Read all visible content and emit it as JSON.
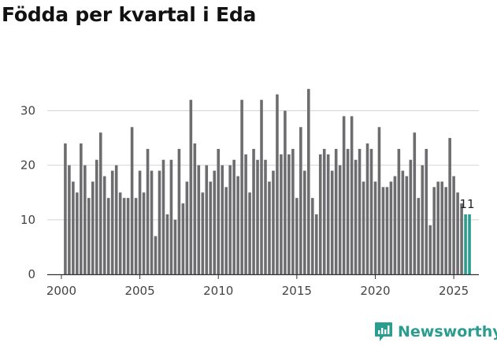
{
  "title": "Födda per kvartal i Eda",
  "brand": {
    "name": "Newsworthy"
  },
  "colors": {
    "bar": "#6d6d70",
    "highlight": "#2a9d8f",
    "axis": "#333333",
    "grid": "#d4d4d4"
  },
  "chart_data": {
    "type": "bar",
    "title": "Födda per kvartal i Eda",
    "xlabel": "",
    "ylabel": "",
    "x_start": 2000.25,
    "x_step": 0.25,
    "xlim": [
      1999.1,
      2026.6
    ],
    "ylim": [
      0,
      36
    ],
    "yticks": [
      0,
      10,
      20,
      30
    ],
    "xticks": [
      2000,
      2005,
      2010,
      2015,
      2020,
      2025
    ],
    "values": [
      24,
      20,
      17,
      15,
      24,
      20,
      14,
      17,
      21,
      26,
      18,
      14,
      19,
      20,
      15,
      14,
      14,
      27,
      14,
      19,
      15,
      23,
      19,
      7,
      19,
      21,
      11,
      21,
      10,
      23,
      13,
      17,
      32,
      24,
      20,
      15,
      20,
      17,
      19,
      23,
      20,
      16,
      20,
      21,
      18,
      32,
      22,
      15,
      23,
      21,
      32,
      21,
      17,
      19,
      33,
      22,
      30,
      22,
      23,
      14,
      27,
      19,
      34,
      14,
      11,
      22,
      23,
      22,
      19,
      23,
      20,
      29,
      23,
      29,
      21,
      23,
      17,
      24,
      23,
      17,
      27,
      16,
      16,
      17,
      18,
      23,
      19,
      18,
      21,
      26,
      14,
      20,
      23,
      9,
      16,
      17,
      17,
      16,
      25,
      18,
      15,
      13,
      11,
      11
    ],
    "highlight_last": 2,
    "last_label": "11"
  }
}
